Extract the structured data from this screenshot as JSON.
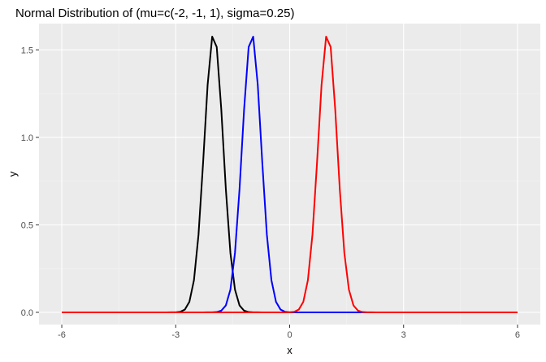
{
  "chart_data": {
    "type": "line",
    "title": "Normal Distribution of (mu=c(-2, -1, 1), sigma=0.25)",
    "xlabel": "x",
    "ylabel": "y",
    "xlim": [
      -6.6,
      6.6
    ],
    "ylim": [
      -0.07,
      1.65
    ],
    "x_ticks": [
      -6,
      -3,
      0,
      3,
      6
    ],
    "x_tick_labels": [
      "-6",
      "-3",
      "0",
      "3",
      "6"
    ],
    "y_ticks": [
      0.0,
      0.5,
      1.0,
      1.5
    ],
    "y_tick_labels": [
      "0.0",
      "0.5",
      "1.0",
      "1.5"
    ],
    "grid": true,
    "legend": "none",
    "colors": {
      "panel_background": "#ebebeb",
      "grid_major": "#ffffff",
      "grid_minor": "#f5f5f5",
      "axis_text": "#4d4d4d",
      "title_text": "#000000"
    },
    "sigma": 0.25,
    "x_range": [
      -6,
      6
    ],
    "n_points": 101,
    "series": [
      {
        "mu": -2,
        "color": "#000000"
      },
      {
        "mu": -1,
        "color": "#0000ff"
      },
      {
        "mu": 1,
        "color": "#ff0000"
      }
    ]
  }
}
